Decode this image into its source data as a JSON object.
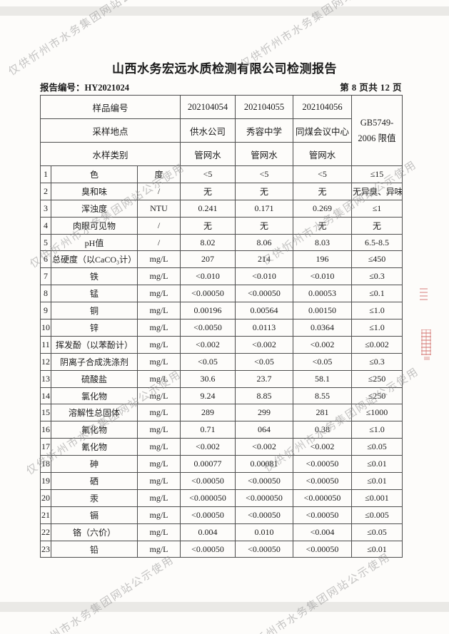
{
  "page": {
    "title": "山西水务宏远水质检测有限公司检测报告",
    "report_no": "报告编号：HY2021024",
    "page_info": "第 8 页共 12 页"
  },
  "watermark": {
    "text": "仅供忻州市水务集团网站公示使用"
  },
  "colors": {
    "watermark_gray": "#8f8f8f",
    "stamp_red": "#c4403c",
    "text": "#1b1b1b",
    "border": "#4e4e4e",
    "paper": "#fdfcfa"
  },
  "table": {
    "header": {
      "row_labels": [
        "样品编号",
        "采样地点",
        "水样类别"
      ],
      "sample_ids": [
        "202104054",
        "202104055",
        "202104056"
      ],
      "locations": [
        "供水公司",
        "秀容中学",
        "同煤会议中心"
      ],
      "water_types": [
        "管网水",
        "管网水",
        "管网水"
      ],
      "limit_line1": "GB5749-",
      "limit_line2": "2006 限值"
    },
    "rows": [
      {
        "no": "1",
        "name": "色",
        "unit": "度",
        "values": [
          "<5",
          "<5",
          "<5"
        ],
        "limit": "≤15"
      },
      {
        "no": "2",
        "name": "臭和味",
        "unit": "/",
        "values": [
          "无",
          "无",
          "无"
        ],
        "limit": "无异臭、异味"
      },
      {
        "no": "3",
        "name": "浑浊度",
        "unit": "NTU",
        "values": [
          "0.241",
          "0.171",
          "0.269"
        ],
        "limit": "≤1"
      },
      {
        "no": "4",
        "name": "肉眼可见物",
        "unit": "/",
        "values": [
          "无",
          "无",
          "无"
        ],
        "limit": "无"
      },
      {
        "no": "5",
        "name": "pH值",
        "unit": "/",
        "values": [
          "8.02",
          "8.06",
          "8.03"
        ],
        "limit": "6.5-8.5"
      },
      {
        "no": "6",
        "name": "总硬度（以CaCO₃计）",
        "unit": "mg/L",
        "values": [
          "207",
          "214",
          "196"
        ],
        "limit": "≤450"
      },
      {
        "no": "7",
        "name": "铁",
        "unit": "mg/L",
        "values": [
          "<0.010",
          "<0.010",
          "<0.010"
        ],
        "limit": "≤0.3"
      },
      {
        "no": "8",
        "name": "锰",
        "unit": "mg/L",
        "values": [
          "<0.00050",
          "<0.00050",
          "0.00053"
        ],
        "limit": "≤0.1"
      },
      {
        "no": "9",
        "name": "铜",
        "unit": "mg/L",
        "values": [
          "0.00196",
          "0.00564",
          "0.00150"
        ],
        "limit": "≤1.0"
      },
      {
        "no": "10",
        "name": "锌",
        "unit": "mg/L",
        "values": [
          "<0.0050",
          "0.0113",
          "0.0364"
        ],
        "limit": "≤1.0"
      },
      {
        "no": "11",
        "name": "挥发酚（以苯酚计）",
        "unit": "mg/L",
        "values": [
          "<0.002",
          "<0.002",
          "<0.002"
        ],
        "limit": "≤0.002"
      },
      {
        "no": "12",
        "name": "阴离子合成洗涤剂",
        "unit": "mg/L",
        "values": [
          "<0.05",
          "<0.05",
          "<0.05"
        ],
        "limit": "≤0.3"
      },
      {
        "no": "13",
        "name": "硫酸盐",
        "unit": "mg/L",
        "values": [
          "30.6",
          "23.7",
          "58.1"
        ],
        "limit": "≤250"
      },
      {
        "no": "14",
        "name": "氯化物",
        "unit": "mg/L",
        "values": [
          "9.24",
          "8.85",
          "8.55"
        ],
        "limit": "≤250"
      },
      {
        "no": "15",
        "name": "溶解性总固体",
        "unit": "mg/L",
        "values": [
          "289",
          "299",
          "281"
        ],
        "limit": "≤1000"
      },
      {
        "no": "16",
        "name": "氟化物",
        "unit": "mg/L",
        "values": [
          "0.71",
          "064",
          "0.38"
        ],
        "limit": "≤1.0"
      },
      {
        "no": "17",
        "name": "氰化物",
        "unit": "mg/L",
        "values": [
          "<0.002",
          "<0.002",
          "<0.002"
        ],
        "limit": "≤0.05"
      },
      {
        "no": "18",
        "name": "砷",
        "unit": "mg/L",
        "values": [
          "0.00077",
          "0.00081",
          "<0.00050"
        ],
        "limit": "≤0.01"
      },
      {
        "no": "19",
        "name": "硒",
        "unit": "mg/L",
        "values": [
          "<0.00050",
          "<0.00050",
          "<0.00050"
        ],
        "limit": "≤0.01"
      },
      {
        "no": "20",
        "name": "汞",
        "unit": "mg/L",
        "values": [
          "<0.000050",
          "<0.000050",
          "<0.000050"
        ],
        "limit": "≤0.001"
      },
      {
        "no": "21",
        "name": "镉",
        "unit": "mg/L",
        "values": [
          "<0.00050",
          "<0.00050",
          "<0.00050"
        ],
        "limit": "≤0.005"
      },
      {
        "no": "22",
        "name": "铬（六价）",
        "unit": "mg/L",
        "values": [
          "0.004",
          "0.010",
          "<0.004"
        ],
        "limit": "≤0.05"
      },
      {
        "no": "23",
        "name": "铅",
        "unit": "mg/L",
        "values": [
          "<0.00050",
          "<0.00050",
          "<0.00050"
        ],
        "limit": "≤0.01"
      }
    ]
  }
}
